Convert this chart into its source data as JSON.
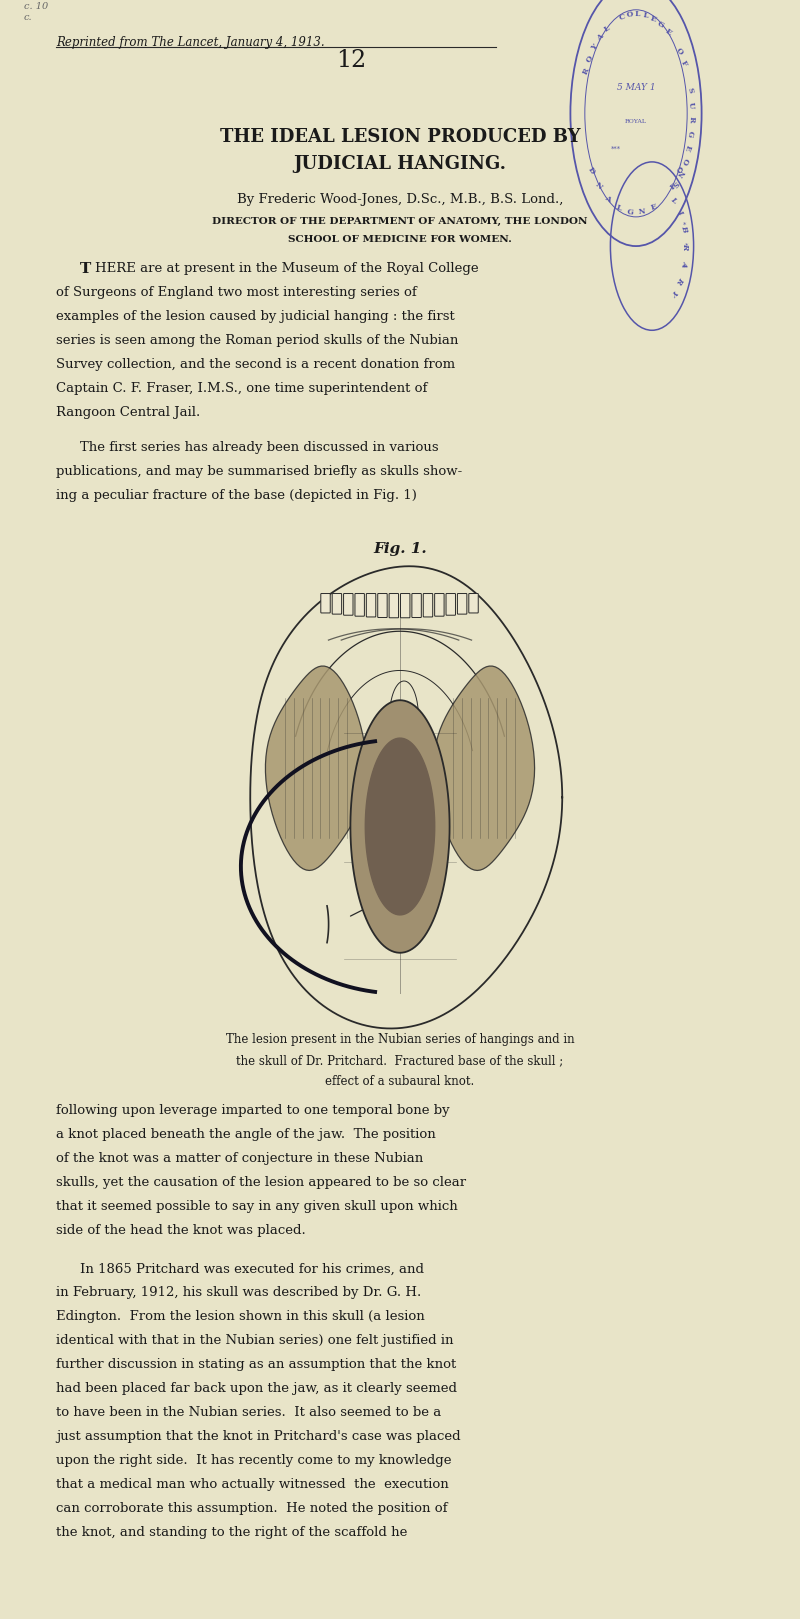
{
  "bg_color": "#e8e4c8",
  "page_width": 8.0,
  "page_height": 16.19,
  "dpi": 100,
  "header_italic": "Reprinted from The Lancet, January 4, 1913.",
  "number": "12",
  "title_line1": "THE IDEAL LESION PRODUCED BY",
  "title_line2": "JUDICIAL HANGING.",
  "author_line": "By Frederic Wood-Jones, D.Sc., M.B., B.S. Lond.,",
  "dept_line1": "DIRECTOR OF THE DEPARTMENT OF ANATOMY, THE LONDON",
  "dept_line2": "SCHOOL OF MEDICINE FOR WOMEN.",
  "fig_caption": "Fig. 1.",
  "fig_subcaption1": "The lesion present in the Nubian series of hangings and in",
  "fig_subcaption2": "the skull of Dr. Pritchard.  Fractured base of the skull ;",
  "fig_subcaption3": "effect of a subaural knot.",
  "stamp1_color": "#5555aa",
  "stamp2_color": "#5555aa",
  "text_color": "#1a1a1a",
  "line_color": "#2a2a2a"
}
